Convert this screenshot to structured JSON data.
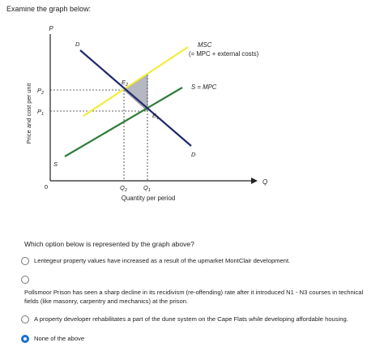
{
  "prompt": "Examine the graph below:",
  "graph": {
    "y_axis_letter": "P",
    "y_axis_title": "Price and cost per unit",
    "x_axis_letter": "Q",
    "x_axis_title": "Quantity per period",
    "origin": "0",
    "p2": "P",
    "p2_sub": "2",
    "p1": "P",
    "p1_sub": "1",
    "q2": "Q",
    "q2_sub": "2",
    "q1": "Q",
    "q1_sub": "1",
    "e2": "E",
    "e2_sub": "2",
    "e1": "E",
    "e1_sub": "1",
    "msc_label": "MSC",
    "msc_sub_label": "(= MPC + external costs)",
    "s_mpc_label": "S = MPC",
    "d_top": "D",
    "d_bottom": "D",
    "s_bottom": "S",
    "colors": {
      "demand": "#1f2a6b",
      "msc": "#f2ec3a",
      "supply": "#2e7d3a",
      "welfare_loss": "#b5b7c2",
      "axes": "#222222"
    }
  },
  "question": "Which option below is represented by the graph above?",
  "options": [
    {
      "text": "Lentegeur property values have increased as a result of the upmarket MontClair development.",
      "selected": false
    },
    {
      "text": "Pollsmoor Prison has seen a sharp decline in its recidivism (re-offending) rate after it introduced N1 - N3 courses in technical fields (like masonry, carpentry and mechanics) at the prison.",
      "selected": false
    },
    {
      "text": "A property developer rehabilitates a part of the dune system on the Cape Flats while developing affordable housing.",
      "selected": false
    },
    {
      "text": "None of the above",
      "selected": true
    }
  ]
}
